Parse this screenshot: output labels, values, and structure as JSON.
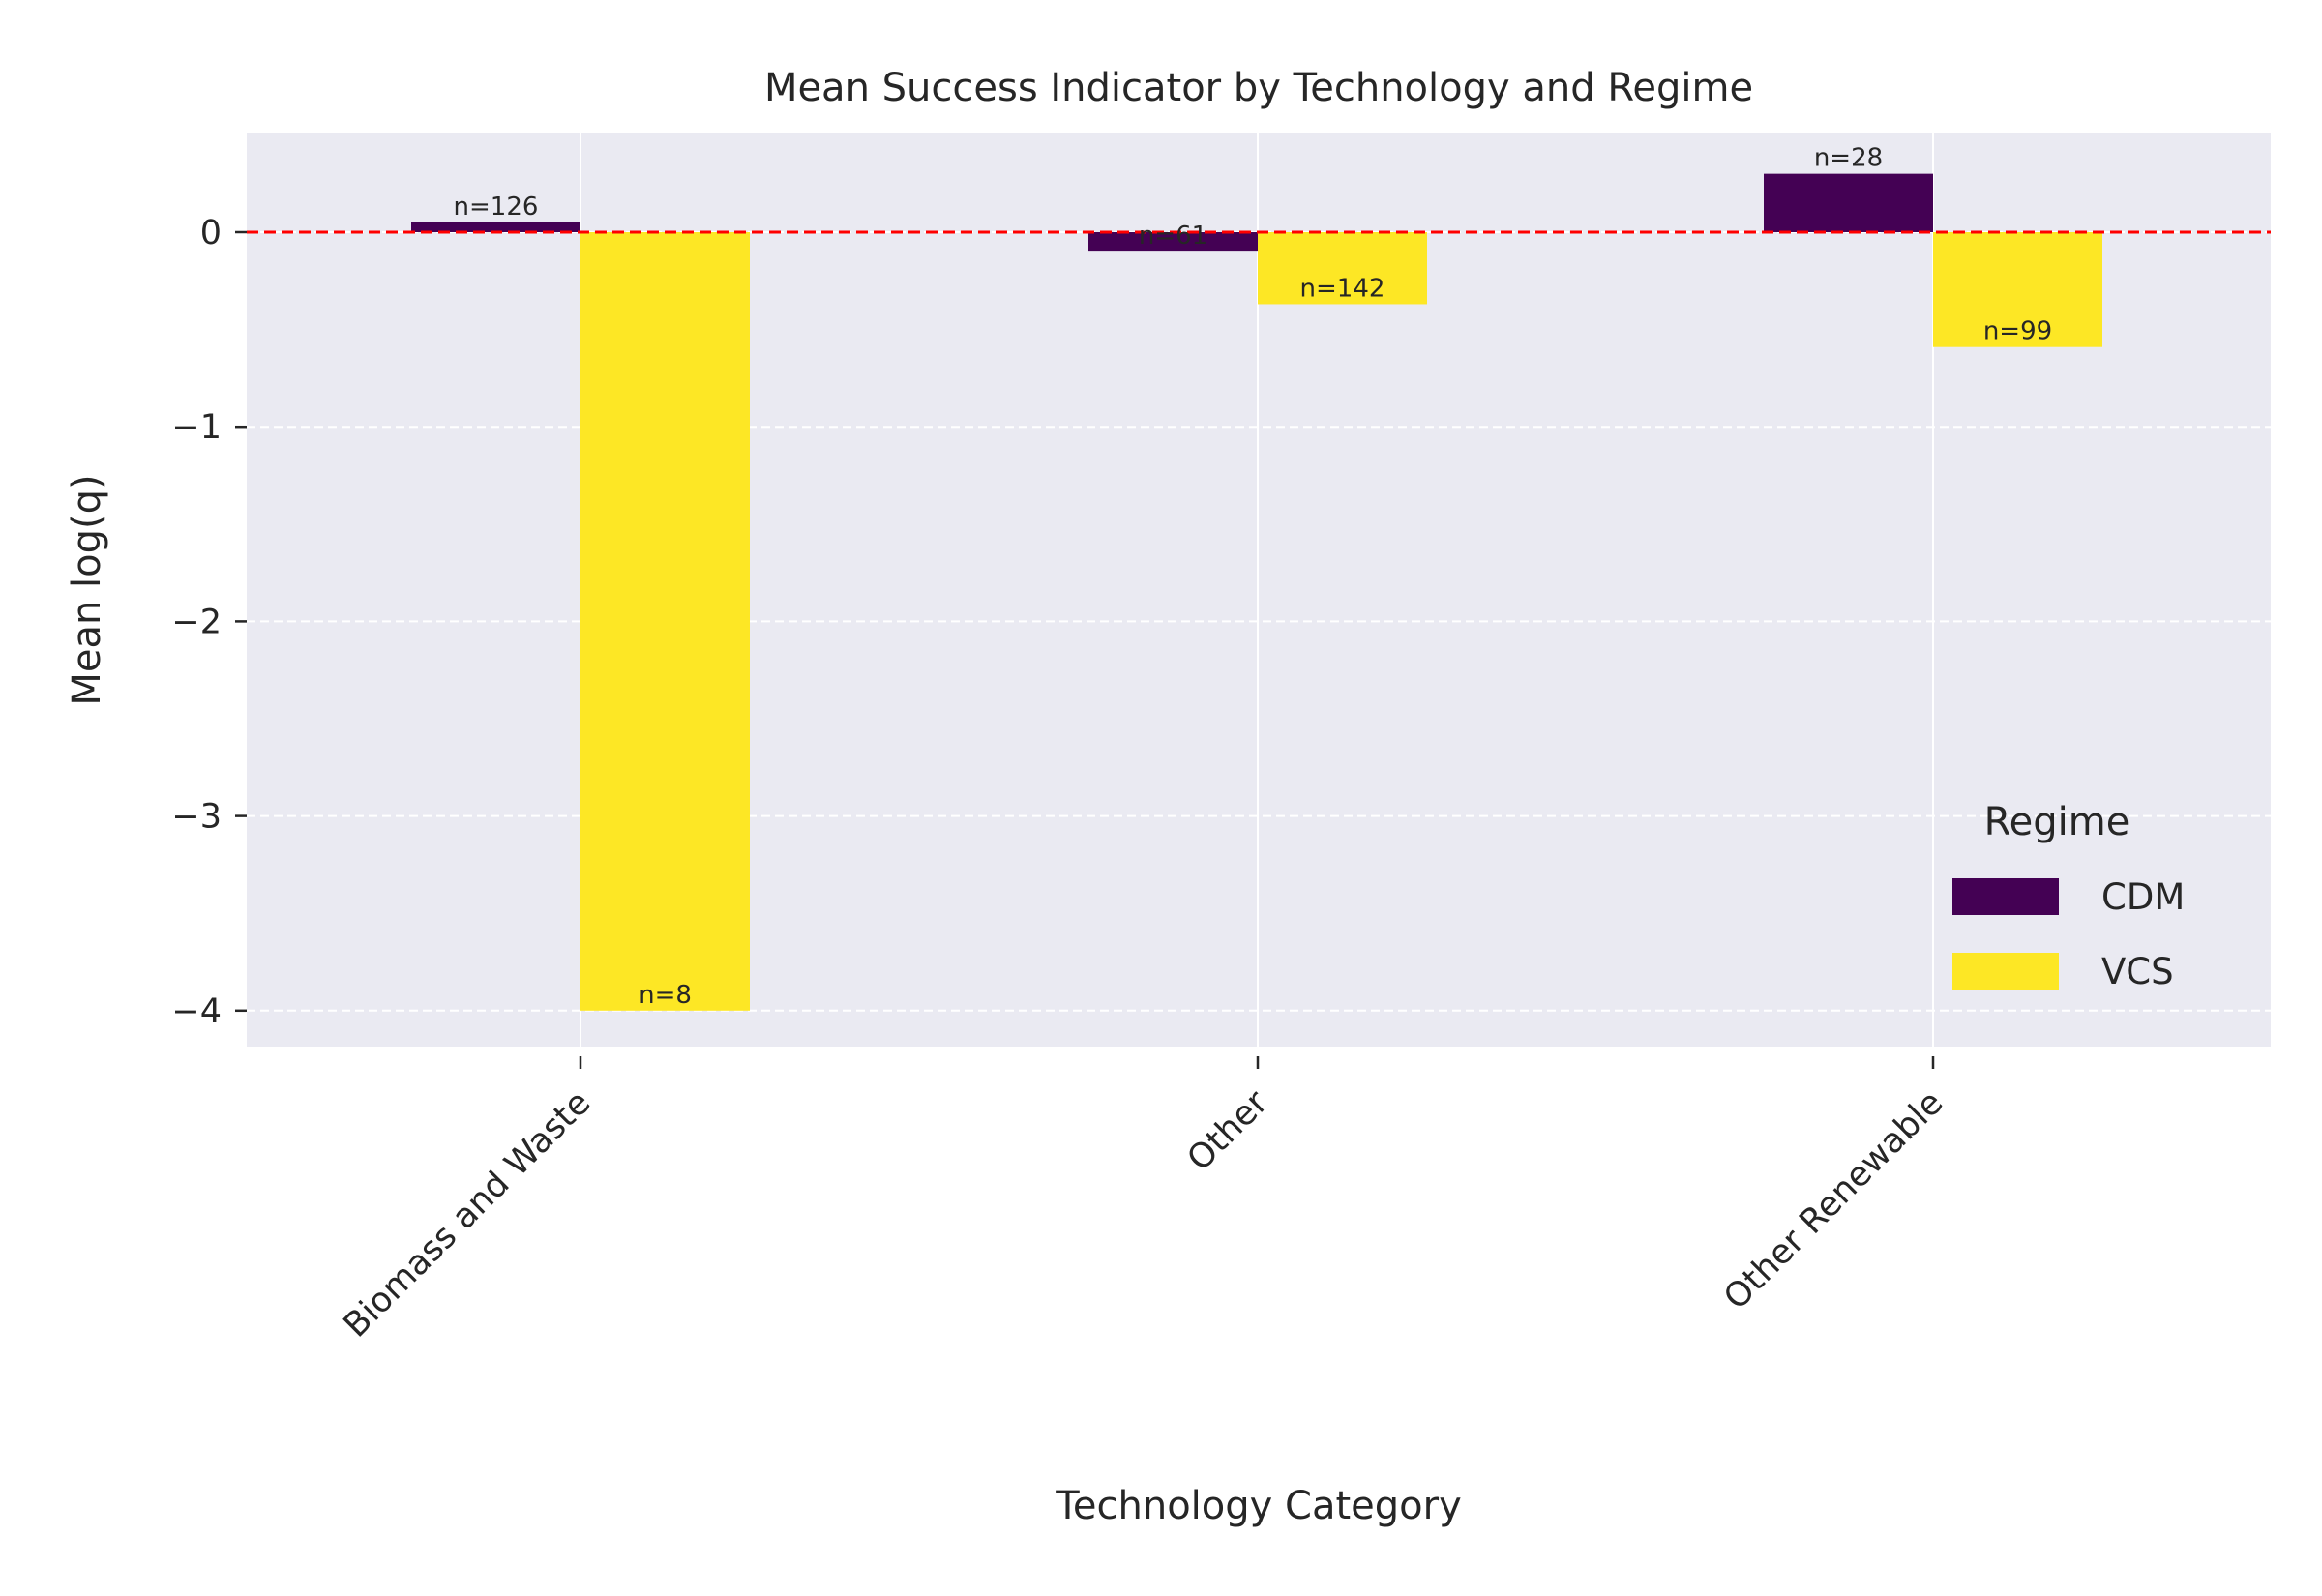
{
  "chart_data": {
    "type": "bar",
    "title": "Mean Success Indicator by Technology and Regime",
    "xlabel": "Technology Category",
    "ylabel": "Mean log(q)",
    "categories": [
      "Biomass and Waste",
      "Other",
      "Other Renewable"
    ],
    "series": [
      {
        "name": "CDM",
        "color": "#440154",
        "values": [
          0.05,
          -0.1,
          0.3
        ],
        "labels": [
          "n=126",
          "n=61",
          "n=28"
        ]
      },
      {
        "name": "VCS",
        "color": "#fde725",
        "values": [
          -4.0,
          -0.37,
          -0.59
        ],
        "labels": [
          "n=8",
          "n=142",
          "n=99"
        ]
      }
    ],
    "yticks": [
      0,
      -1,
      -2,
      -3,
      -4
    ],
    "ytick_labels": [
      "0",
      "−1",
      "−2",
      "−3",
      "−4"
    ],
    "ylim": [
      -4.2,
      0.5
    ],
    "reference_line": {
      "y": 0,
      "color": "#ff0000",
      "style": "dashed"
    },
    "grid": true,
    "legend": {
      "title": "Regime",
      "placement": "lower-right"
    },
    "colors": {
      "plot_background": "#eaeaf2",
      "grid": "#ffffff"
    }
  }
}
